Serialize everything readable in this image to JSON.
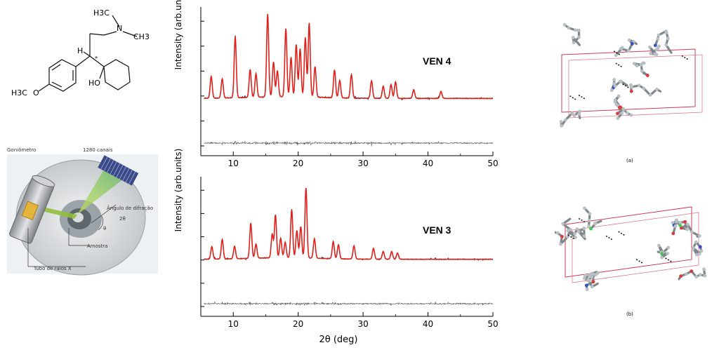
{
  "molecule": {
    "n_group": "N",
    "ch3_top": "H3C",
    "ch3_right": "CH3",
    "h_label": "H",
    "star": "*",
    "ho_label": "HO",
    "o_label": "O",
    "h3c_bottom": "H3C"
  },
  "diffractometer": {
    "goniometer_label": "Goniômetro",
    "channels_label": "1280 canais",
    "angle_label": "Ângulo de difração",
    "two_theta": "2θ",
    "theta": "θ",
    "sample_label": "Amostra",
    "tube_label": "Tubo de raios X"
  },
  "plots": {
    "xlabel": "2θ (deg)",
    "ylabel": "Intensity (arb.units)",
    "xticks": [
      "10",
      "20",
      "30",
      "40",
      "50"
    ],
    "top_label": "VEN 4",
    "bottom_label": "VEN 3",
    "observed_color": "#000000",
    "calculated_color": "#e0201a",
    "difference_color": "#555555"
  },
  "chart_data": [
    {
      "type": "line",
      "title": "VEN 4",
      "xlabel": "",
      "ylabel": "Intensity (arb.units)",
      "xlim": [
        5,
        50
      ],
      "series": [
        {
          "values_peaks": [
            [
              6.6,
              0.25
            ],
            [
              8.3,
              0.22
            ],
            [
              10.3,
              0.7
            ],
            [
              12.6,
              0.32
            ],
            [
              13.5,
              0.27
            ],
            [
              15.3,
              0.95
            ],
            [
              16.2,
              0.4
            ],
            [
              16.8,
              0.3
            ],
            [
              18.1,
              0.78
            ],
            [
              18.9,
              0.45
            ],
            [
              19.7,
              0.6
            ],
            [
              20.3,
              0.55
            ],
            [
              21.1,
              0.68
            ],
            [
              21.7,
              0.85
            ],
            [
              22.6,
              0.35
            ],
            [
              25.6,
              0.32
            ],
            [
              26.4,
              0.2
            ],
            [
              28.2,
              0.27
            ],
            [
              31.3,
              0.2
            ],
            [
              33.1,
              0.14
            ],
            [
              34.3,
              0.16
            ],
            [
              35.0,
              0.19
            ],
            [
              37.8,
              0.1
            ],
            [
              42.0,
              0.08
            ]
          ]
        }
      ]
    },
    {
      "type": "line",
      "title": "VEN 3",
      "xlabel": "2θ (deg)",
      "ylabel": "Intensity (arb.units)",
      "xlim": [
        5,
        50
      ],
      "series": [
        {
          "values_peaks": [
            [
              6.7,
              0.16
            ],
            [
              8.3,
              0.25
            ],
            [
              10.2,
              0.16
            ],
            [
              12.7,
              0.45
            ],
            [
              13.5,
              0.18
            ],
            [
              16.0,
              0.3
            ],
            [
              16.5,
              0.55
            ],
            [
              17.3,
              0.25
            ],
            [
              18.0,
              0.2
            ],
            [
              19.0,
              0.62
            ],
            [
              19.8,
              0.35
            ],
            [
              20.4,
              0.4
            ],
            [
              21.2,
              0.9
            ],
            [
              22.5,
              0.25
            ],
            [
              25.4,
              0.22
            ],
            [
              26.2,
              0.18
            ],
            [
              28.6,
              0.17
            ],
            [
              31.6,
              0.14
            ],
            [
              33.1,
              0.1
            ],
            [
              34.4,
              0.1
            ],
            [
              35.3,
              0.08
            ]
          ]
        }
      ]
    }
  ],
  "crystal": {
    "label_a": "(a)",
    "label_b": "(b)"
  }
}
